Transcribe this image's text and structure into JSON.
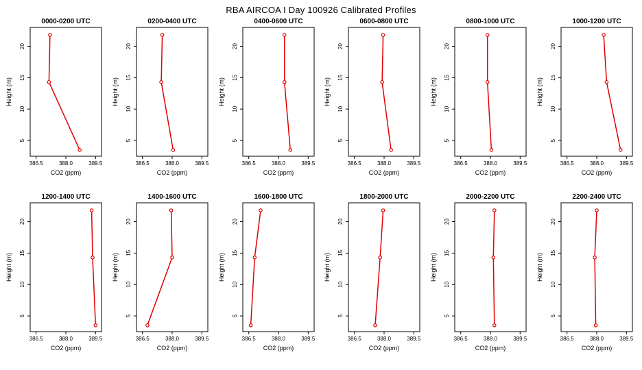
{
  "page": {
    "title": "RBA AIRCOA I Day 100926 Calibrated Profiles"
  },
  "axes": {
    "xlabel": "CO2 (ppm)",
    "ylabel": "Height (m)",
    "xticks": [
      386.5,
      388.0,
      389.5
    ],
    "yticks": [
      5,
      10,
      15,
      20
    ],
    "xlim": [
      386.2,
      389.8
    ],
    "ylim": [
      2.5,
      23.0
    ]
  },
  "style": {
    "line_color": "#e00000",
    "marker_fill": "#ffffff",
    "axis_color": "#000000"
  },
  "chart_data": [
    {
      "type": "line",
      "title": "0000-0200 UTC",
      "xlabel": "CO2 (ppm)",
      "ylabel": "Height (m)",
      "height": [
        3.5,
        14.3,
        21.8
      ],
      "co2": [
        388.7,
        387.15,
        387.2
      ]
    },
    {
      "type": "line",
      "title": "0200-0400 UTC",
      "xlabel": "CO2 (ppm)",
      "ylabel": "Height (m)",
      "height": [
        3.5,
        14.3,
        21.8
      ],
      "co2": [
        388.05,
        387.45,
        387.5
      ]
    },
    {
      "type": "line",
      "title": "0400-0600 UTC",
      "xlabel": "CO2 (ppm)",
      "ylabel": "Height (m)",
      "height": [
        3.5,
        14.3,
        21.8
      ],
      "co2": [
        388.6,
        388.3,
        388.3
      ]
    },
    {
      "type": "line",
      "title": "0600-0800 UTC",
      "xlabel": "CO2 (ppm)",
      "ylabel": "Height (m)",
      "height": [
        3.5,
        14.3,
        21.8
      ],
      "co2": [
        388.35,
        387.9,
        387.95
      ]
    },
    {
      "type": "line",
      "title": "0800-1000 UTC",
      "xlabel": "CO2 (ppm)",
      "ylabel": "Height (m)",
      "height": [
        3.5,
        14.3,
        21.8
      ],
      "co2": [
        388.05,
        387.85,
        387.85
      ]
    },
    {
      "type": "line",
      "title": "1000-1200 UTC",
      "xlabel": "CO2 (ppm)",
      "ylabel": "Height (m)",
      "height": [
        3.5,
        14.3,
        21.8
      ],
      "co2": [
        389.2,
        388.5,
        388.35
      ]
    },
    {
      "type": "line",
      "title": "1200-1400 UTC",
      "xlabel": "CO2 (ppm)",
      "ylabel": "Height (m)",
      "height": [
        3.5,
        14.3,
        21.8
      ],
      "co2": [
        389.5,
        389.35,
        389.3
      ]
    },
    {
      "type": "line",
      "title": "1400-1600 UTC",
      "xlabel": "CO2 (ppm)",
      "ylabel": "Height (m)",
      "height": [
        3.5,
        14.3,
        21.8
      ],
      "co2": [
        386.75,
        388.0,
        387.95
      ]
    },
    {
      "type": "line",
      "title": "1600-1800 UTC",
      "xlabel": "CO2 (ppm)",
      "ylabel": "Height (m)",
      "height": [
        3.5,
        14.3,
        21.8
      ],
      "co2": [
        386.6,
        386.8,
        387.1
      ]
    },
    {
      "type": "line",
      "title": "1800-2000 UTC",
      "xlabel": "CO2 (ppm)",
      "ylabel": "Height (m)",
      "height": [
        3.5,
        14.3,
        21.8
      ],
      "co2": [
        387.55,
        387.8,
        387.95
      ]
    },
    {
      "type": "line",
      "title": "2000-2200 UTC",
      "xlabel": "CO2 (ppm)",
      "ylabel": "Height (m)",
      "height": [
        3.5,
        14.3,
        21.8
      ],
      "co2": [
        388.2,
        388.15,
        388.2
      ]
    },
    {
      "type": "line",
      "title": "2200-2400 UTC",
      "xlabel": "CO2 (ppm)",
      "ylabel": "Height (m)",
      "height": [
        3.5,
        14.3,
        21.8
      ],
      "co2": [
        387.95,
        387.9,
        388.0
      ]
    }
  ]
}
